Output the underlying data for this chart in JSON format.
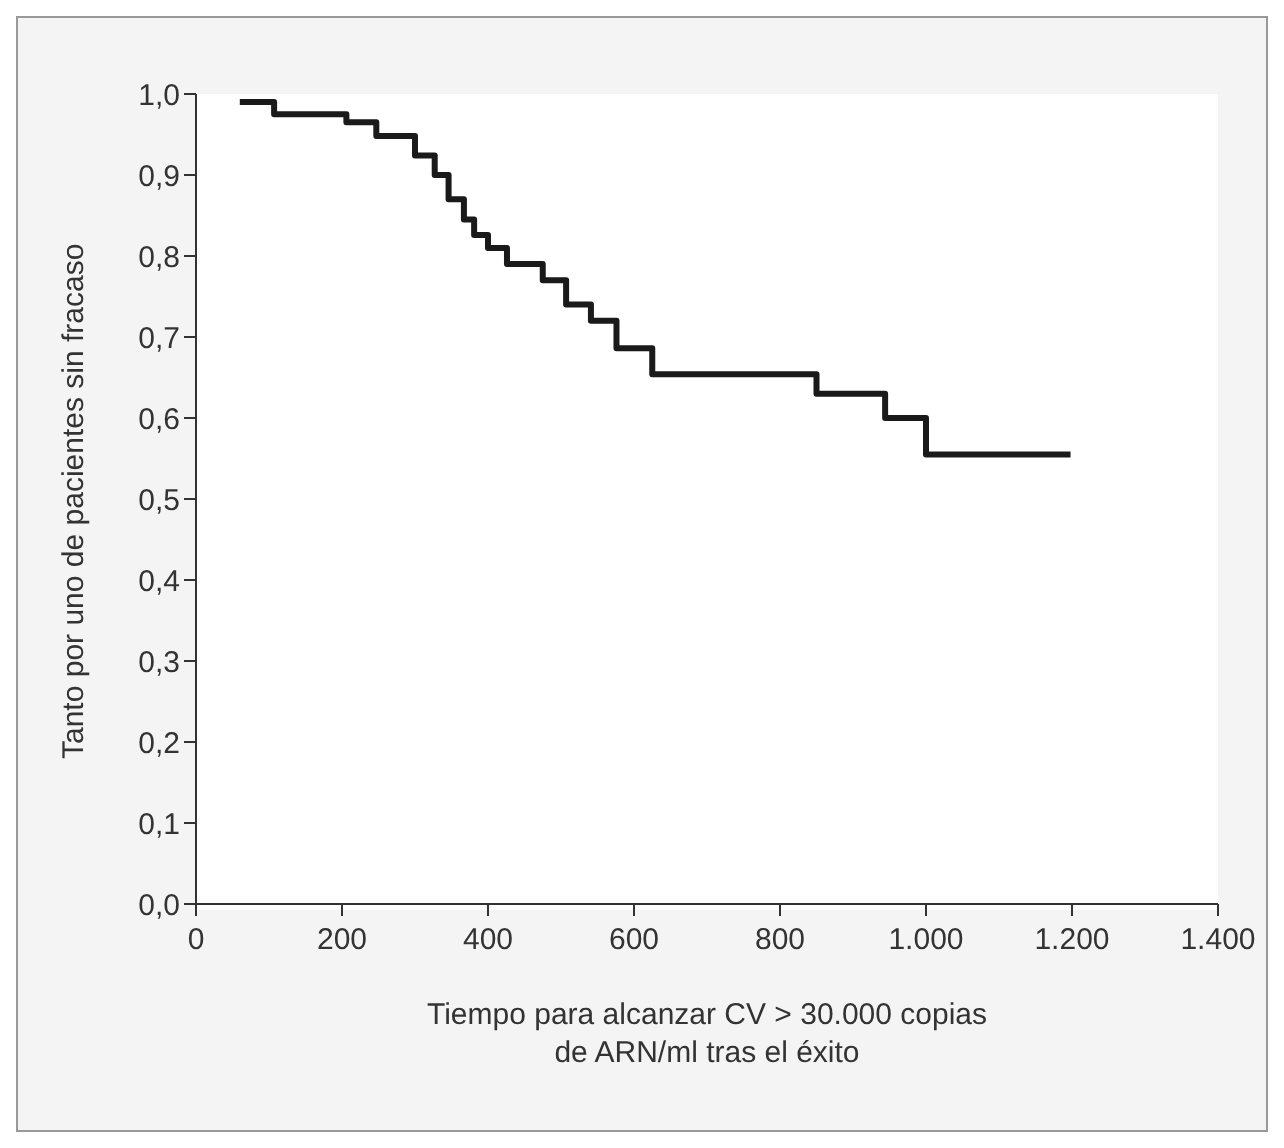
{
  "chart_data": {
    "type": "step",
    "xlabel": "Tiempo para alcanzar CV > 30.000 copias\nde ARN/ml tras el éxito",
    "ylabel": "Tanto por uno de pacientes sin fracaso",
    "x": [
      60,
      107,
      206,
      247,
      300,
      327,
      346,
      367,
      381,
      400,
      426,
      475,
      507,
      541,
      576,
      625,
      716,
      850,
      944,
      1000,
      1198
    ],
    "series": [
      {
        "color": "#1a1a1a",
        "values": [
          0.99,
          0.975,
          0.965,
          0.948,
          0.924,
          0.9,
          0.87,
          0.845,
          0.826,
          0.81,
          0.79,
          0.77,
          0.74,
          0.72,
          0.686,
          0.654,
          0.654,
          0.63,
          0.6,
          0.555,
          0.555
        ]
      }
    ],
    "xlim": [
      0,
      1400
    ],
    "xticks": [
      0,
      200,
      400,
      600,
      800,
      {
        "value": 1000,
        "label": "1.000"
      },
      {
        "value": 1200,
        "label": "1.200"
      },
      {
        "value": 1400,
        "label": "1.400"
      }
    ],
    "ylim": [
      0,
      1
    ],
    "yticks": [
      {
        "value": 0,
        "label": "0,0"
      },
      {
        "value": 0.1,
        "label": "0,1"
      },
      {
        "value": 0.2,
        "label": "0,2"
      },
      {
        "value": 0.3,
        "label": "0,3"
      },
      {
        "value": 0.4,
        "label": "0,4"
      },
      {
        "value": 0.5,
        "label": "0,5"
      },
      {
        "value": 0.6,
        "label": "0,6"
      },
      {
        "value": 0.7,
        "label": "0,7"
      },
      {
        "value": 0.8,
        "label": "0,8"
      },
      {
        "value": 0.9,
        "label": "0,9"
      },
      {
        "value": 1,
        "label": "1,0"
      }
    ],
    "grid": false,
    "legend": false,
    "marker": "none",
    "line_style": "solid"
  }
}
